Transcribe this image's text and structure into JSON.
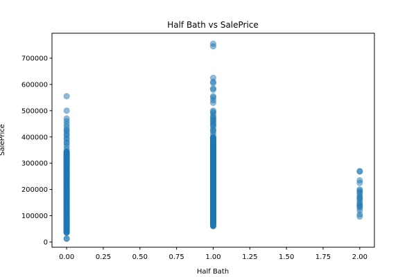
{
  "chart_data": {
    "type": "scatter",
    "title": "Half Bath vs SalePrice",
    "xlabel": "Half Bath",
    "ylabel": "SalePrice",
    "xlim": [
      -0.1,
      2.1
    ],
    "ylim": [
      -20000,
      795000
    ],
    "xticks": [
      0.0,
      0.25,
      0.5,
      0.75,
      1.0,
      1.25,
      1.5,
      1.75,
      2.0
    ],
    "xtick_labels": [
      "0.00",
      "0.25",
      "0.50",
      "0.75",
      "1.00",
      "1.25",
      "1.50",
      "1.75",
      "2.00"
    ],
    "yticks": [
      0,
      100000,
      200000,
      300000,
      400000,
      500000,
      600000,
      700000
    ],
    "ytick_labels": [
      "0",
      "100000",
      "200000",
      "300000",
      "400000",
      "500000",
      "600000",
      "700000"
    ],
    "grid": false,
    "marker_color": "#1f77b4",
    "marker_alpha": 0.5,
    "groups": [
      {
        "x": 0.0,
        "dense_range": [
          35000,
          345000
        ],
        "sparse_values": [
          12000,
          13000,
          355000,
          365000,
          375000,
          380000,
          390000,
          395000,
          405000,
          410000,
          418000,
          425000,
          430000,
          440000,
          450000,
          460000,
          470000,
          500000,
          555000
        ]
      },
      {
        "x": 1.0,
        "dense_range": [
          60000,
          400000
        ],
        "sparse_values": [
          410000,
          420000,
          425000,
          430000,
          440000,
          445000,
          450000,
          455000,
          460000,
          465000,
          470000,
          475000,
          480000,
          490000,
          495000,
          500000,
          530000,
          540000,
          550000,
          555000,
          580000,
          585000,
          605000,
          610000,
          625000,
          745000,
          755000
        ]
      },
      {
        "x": 2.0,
        "dense_range": null,
        "sparse_values": [
          97000,
          105000,
          120000,
          130000,
          135000,
          140000,
          145000,
          150000,
          160000,
          165000,
          170000,
          175000,
          185000,
          190000,
          195000,
          200000,
          225000,
          235000,
          268000,
          270000
        ]
      }
    ]
  }
}
